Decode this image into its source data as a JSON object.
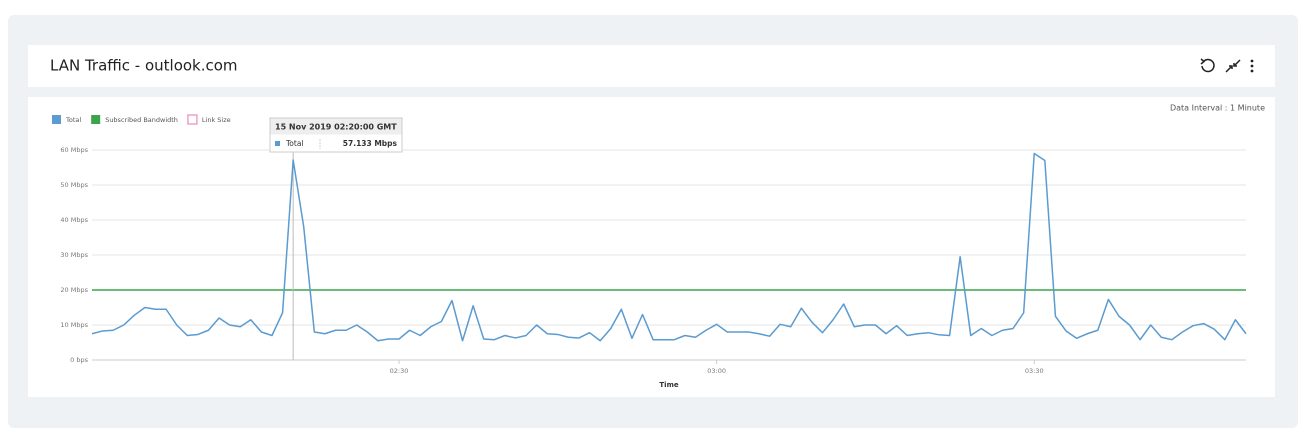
{
  "header": {
    "title": "LAN Traffic - outlook.com"
  },
  "chart_data": {
    "type": "line",
    "data_interval": "Data Interval : 1 Minute",
    "xlabel": "Time",
    "x": [
      "02:01",
      "02:02",
      "02:03",
      "02:04",
      "02:05",
      "02:06",
      "02:07",
      "02:08",
      "02:09",
      "02:10",
      "02:11",
      "02:12",
      "02:13",
      "02:14",
      "02:15",
      "02:16",
      "02:17",
      "02:18",
      "02:19",
      "02:20",
      "02:21",
      "02:22",
      "02:23",
      "02:24",
      "02:25",
      "02:26",
      "02:27",
      "02:28",
      "02:29",
      "02:30",
      "02:31",
      "02:32",
      "02:33",
      "02:34",
      "02:35",
      "02:36",
      "02:37",
      "02:38",
      "02:39",
      "02:40",
      "02:41",
      "02:42",
      "02:43",
      "02:44",
      "02:45",
      "02:46",
      "02:47",
      "02:48",
      "02:49",
      "02:50",
      "02:51",
      "02:52",
      "02:53",
      "02:54",
      "02:55",
      "02:56",
      "02:57",
      "02:58",
      "02:59",
      "03:00",
      "03:01",
      "03:02",
      "03:03",
      "03:04",
      "03:05",
      "03:06",
      "03:07",
      "03:08",
      "03:09",
      "03:10",
      "03:11",
      "03:12",
      "03:13",
      "03:14",
      "03:15",
      "03:16",
      "03:17",
      "03:18",
      "03:19",
      "03:20",
      "03:21",
      "03:22",
      "03:23",
      "03:24",
      "03:25",
      "03:26",
      "03:27",
      "03:28",
      "03:29",
      "03:30",
      "03:31",
      "03:32",
      "03:33",
      "03:34",
      "03:35",
      "03:36",
      "03:37",
      "03:38",
      "03:39",
      "03:40",
      "03:41",
      "03:42",
      "03:43",
      "03:44",
      "03:45",
      "03:46",
      "03:47",
      "03:48",
      "03:49",
      "03:50"
    ],
    "series": [
      {
        "name": "Total",
        "color": "#5b9bd0",
        "values": [
          7.5,
          8.3,
          8.5,
          10,
          12.8,
          15,
          14.5,
          14.5,
          10,
          7,
          7.3,
          8.5,
          12,
          10,
          9.5,
          11.5,
          8,
          7,
          13.5,
          57.133,
          38,
          8,
          7.5,
          8.5,
          8.5,
          10,
          8,
          5.5,
          6,
          6,
          8.5,
          7,
          9.5,
          11,
          17,
          5.5,
          15.5,
          6,
          5.8,
          7,
          6.3,
          7,
          10,
          7.5,
          7.3,
          6.5,
          6.3,
          7.8,
          5.5,
          9,
          14.5,
          6.2,
          13,
          5.8,
          5.8,
          5.8,
          7,
          6.5,
          8.5,
          10.2,
          8,
          8,
          8,
          7.5,
          6.8,
          10.2,
          9.5,
          14.8,
          10.8,
          7.8,
          11.5,
          16,
          9.5,
          10,
          10,
          7.5,
          9.8,
          7,
          7.5,
          7.8,
          7.2,
          7,
          29.5,
          7,
          9,
          7,
          8.5,
          9,
          13.5,
          59,
          57,
          12.5,
          8.3,
          6.2,
          7.5,
          8.5,
          17.3,
          12.5,
          10,
          5.8,
          10,
          6.5,
          5.8,
          8,
          9.8,
          10.4,
          8.8,
          5.8,
          11.5,
          7.5
        ]
      }
    ],
    "reference_lines": [
      {
        "name": "Subscribed Bandwidth",
        "color": "#3aa54a",
        "value": 20
      }
    ],
    "legend_extra": [
      {
        "name": "Link Size",
        "color": "#e88ac0"
      }
    ],
    "xlim": [
      "02:01",
      "03:50"
    ],
    "xticks": [
      "02:30",
      "03:00",
      "03:30"
    ],
    "ylim": [
      0,
      60
    ],
    "yticks": [
      {
        "value": 0,
        "label": "0 bps"
      },
      {
        "value": 10,
        "label": "10 Mbps"
      },
      {
        "value": 20,
        "label": "20 Mbps"
      },
      {
        "value": 30,
        "label": "30 Mbps"
      },
      {
        "value": 40,
        "label": "40 Mbps"
      },
      {
        "value": 50,
        "label": "50 Mbps"
      },
      {
        "value": 60,
        "label": "60 Mbps"
      }
    ],
    "grid": true,
    "tooltip": {
      "title": "15 Nov 2019 02:20:00 GMT",
      "series": "Total",
      "x": "02:20",
      "label": "57.133 Mbps"
    }
  }
}
